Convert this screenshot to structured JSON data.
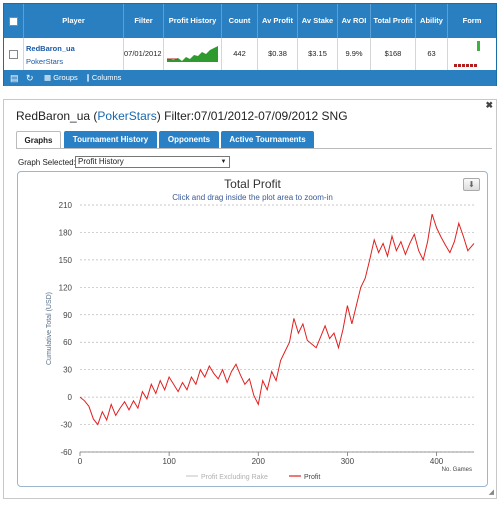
{
  "table": {
    "headers": [
      "Player",
      "Filter",
      "Profit History",
      "Count",
      "Av Profit",
      "Av Stake",
      "Av ROI",
      "Total Profit",
      "Ability",
      "Form"
    ],
    "row": {
      "player": "RedBaron_ua",
      "site": "PokerStars",
      "filter": "07/01/2012",
      "count": "442",
      "av_profit": "$0.38",
      "av_stake": "$3.15",
      "av_roi": "9.9%",
      "total_profit": "$168",
      "ability": "63"
    }
  },
  "toolbar": {
    "groups_label": "Groups",
    "columns_label": "Columns"
  },
  "detail": {
    "player": "RedBaron_ua",
    "site": "PokerStars",
    "filter_text": "Filter:07/01/2012-07/09/2012 SNG",
    "tabs": [
      "Graphs",
      "Tournament History",
      "Opponents",
      "Active Tournaments"
    ],
    "graph_selected_label": "Graph Selected:",
    "graph_selected_value": "Profit History"
  },
  "chart_data": {
    "type": "line",
    "title": "Total Profit",
    "subtitle": "Click and drag inside the plot area to zoom-in",
    "ylabel": "Cumulative Total (USD)",
    "xlabel": "No. Games",
    "xlim": [
      0,
      442
    ],
    "ylim": [
      -60,
      210
    ],
    "xticks": [
      "0",
      "100",
      "200",
      "300",
      "400"
    ],
    "yticks": [
      "210",
      "180",
      "150",
      "120",
      "90",
      "60",
      "30",
      "0",
      "-30",
      "-60"
    ],
    "grid": true,
    "legend_position": "bottom",
    "series": [
      {
        "name": "Profit Excluding Rake",
        "color": "#cccccc",
        "x": [],
        "y": []
      },
      {
        "name": "Profit",
        "color": "#e02020",
        "x": [
          0,
          5,
          10,
          15,
          20,
          25,
          30,
          35,
          40,
          45,
          50,
          55,
          60,
          65,
          70,
          75,
          80,
          85,
          90,
          95,
          100,
          105,
          110,
          115,
          120,
          125,
          130,
          135,
          140,
          145,
          150,
          155,
          160,
          165,
          170,
          175,
          180,
          185,
          190,
          195,
          200,
          205,
          210,
          215,
          220,
          225,
          230,
          235,
          240,
          245,
          250,
          255,
          260,
          265,
          270,
          275,
          280,
          285,
          290,
          295,
          300,
          305,
          310,
          315,
          320,
          325,
          330,
          335,
          340,
          345,
          350,
          355,
          360,
          365,
          370,
          375,
          380,
          385,
          390,
          395,
          400,
          405,
          410,
          415,
          420,
          425,
          430,
          435,
          442
        ],
        "y": [
          0,
          -4,
          -10,
          -24,
          -30,
          -16,
          -25,
          -8,
          -20,
          -12,
          -5,
          -14,
          -4,
          -12,
          6,
          -2,
          14,
          4,
          18,
          8,
          22,
          14,
          6,
          16,
          8,
          22,
          14,
          30,
          22,
          34,
          26,
          20,
          30,
          16,
          28,
          36,
          24,
          14,
          20,
          2,
          -8,
          18,
          8,
          28,
          18,
          40,
          50,
          60,
          86,
          70,
          80,
          62,
          58,
          54,
          66,
          78,
          64,
          70,
          54,
          74,
          100,
          80,
          100,
          120,
          130,
          150,
          172,
          158,
          168,
          154,
          176,
          160,
          170,
          156,
          168,
          178,
          160,
          150,
          170,
          200,
          185,
          175,
          166,
          158,
          170,
          190,
          176,
          160,
          168
        ]
      }
    ]
  }
}
